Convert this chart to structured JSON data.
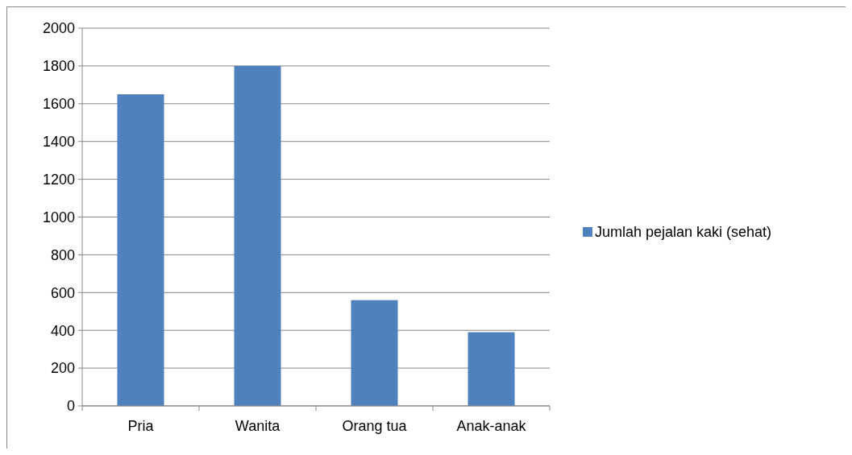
{
  "chart_data": {
    "type": "bar",
    "categories": [
      "Pria",
      "Wanita",
      "Orang tua",
      "Anak-anak"
    ],
    "series": [
      {
        "name": "Jumlah pejalan kaki (sehat)",
        "color": "#4f81bd",
        "values": [
          1650,
          1800,
          560,
          390
        ]
      }
    ],
    "ylim": [
      0,
      2000
    ],
    "yticks": [
      0,
      200,
      400,
      600,
      800,
      1000,
      1200,
      1400,
      1600,
      1800,
      2000
    ],
    "grid": "y",
    "legend": "right"
  }
}
